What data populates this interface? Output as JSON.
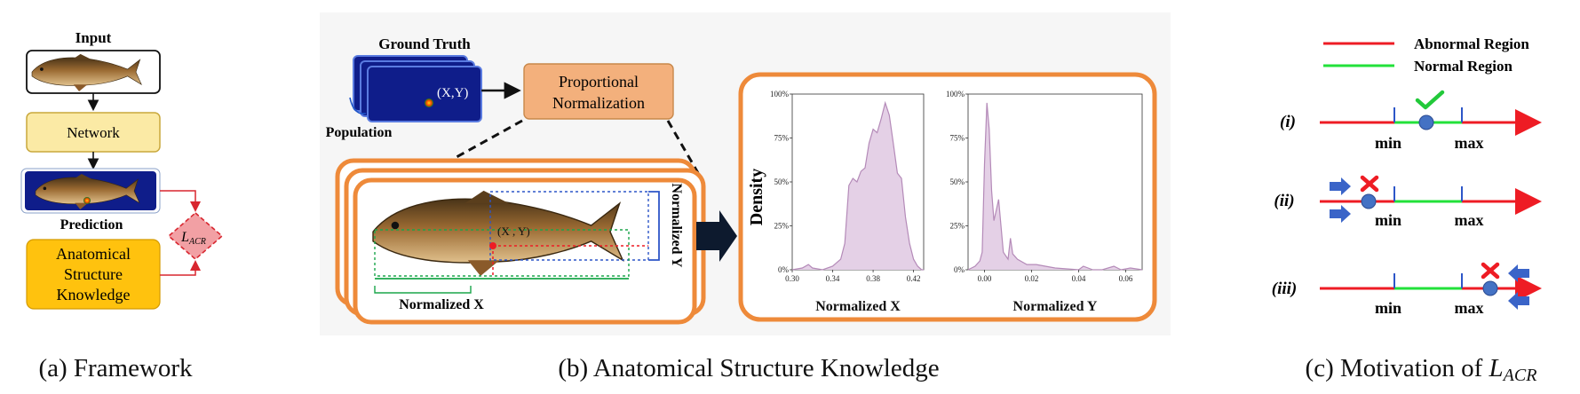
{
  "panel_a": {
    "input_label": "Input",
    "network_label": "Network",
    "prediction_label": "Prediction",
    "knowledge_label": [
      "Anatomical",
      "Structure",
      "Knowledge"
    ],
    "loss_label": "L",
    "loss_subscript": "ACR",
    "caption": "(a) Framework"
  },
  "panel_b": {
    "ground_truth_label": "Ground Truth",
    "population_label": "Population",
    "gt_point_label": "(X,Y)",
    "proportional_label": [
      "Proportional",
      "Normalization"
    ],
    "fish_point_label": "(X , Y)",
    "normalized_x_label": "Normalized X",
    "normalized_y_label": "Normalized Y",
    "density_label": "Density",
    "caption": "(b) Anatomical Structure Knowledge",
    "colors": {
      "orange": "#ee8a3a",
      "navy": "#12237a",
      "fill_purple": "#e4d0e6"
    }
  },
  "chart_data": [
    {
      "type": "area",
      "xlabel": "Normalized X",
      "ylabel": "Density",
      "x_ticks": [
        "0.30",
        "0.34",
        "0.38",
        "0.42"
      ],
      "y_ticks": [
        "0%",
        "25%",
        "50%",
        "75%",
        "100%"
      ],
      "xlim": [
        0.3,
        0.43
      ],
      "ylim": [
        0,
        100
      ],
      "x": [
        0.3,
        0.31,
        0.316,
        0.32,
        0.33,
        0.34,
        0.348,
        0.352,
        0.356,
        0.36,
        0.364,
        0.368,
        0.372,
        0.376,
        0.38,
        0.384,
        0.388,
        0.392,
        0.396,
        0.4,
        0.404,
        0.408,
        0.412,
        0.416,
        0.42,
        0.424,
        0.428,
        0.43
      ],
      "y": [
        0,
        1,
        3,
        1,
        0,
        2,
        6,
        15,
        48,
        52,
        50,
        56,
        58,
        72,
        80,
        78,
        86,
        95,
        88,
        72,
        55,
        52,
        30,
        15,
        6,
        2,
        0,
        0
      ]
    },
    {
      "type": "area",
      "xlabel": "Normalized Y",
      "x_ticks": [
        "0.00",
        "0.02",
        "0.04",
        "0.06"
      ],
      "y_ticks": [
        "0%",
        "25%",
        "50%",
        "75%",
        "100%"
      ],
      "xlim": [
        -0.007,
        0.067
      ],
      "ylim": [
        0,
        100
      ],
      "x": [
        -0.007,
        -0.004,
        -0.002,
        -0.001,
        0.0,
        0.001,
        0.002,
        0.003,
        0.004,
        0.005,
        0.006,
        0.008,
        0.01,
        0.011,
        0.012,
        0.014,
        0.018,
        0.022,
        0.03,
        0.04,
        0.042,
        0.046,
        0.05,
        0.055,
        0.058,
        0.062,
        0.067
      ],
      "y": [
        0,
        2,
        5,
        10,
        60,
        95,
        80,
        45,
        28,
        34,
        40,
        10,
        6,
        18,
        9,
        6,
        3,
        3,
        1,
        0,
        2,
        0,
        0,
        2,
        0,
        1,
        0
      ]
    }
  ],
  "panel_c": {
    "legend_abnormal": "Abnormal Region",
    "legend_normal": "Normal Region",
    "rows": [
      "(i)",
      "(ii)",
      "(iii)"
    ],
    "min_label": "min",
    "max_label": "max",
    "caption_prefix": "(c) Motivation of ",
    "caption_symbol": "L",
    "caption_subscript": "ACR",
    "colors": {
      "abnormal": "#ee1c24",
      "normal": "#22e13a",
      "marker": "#4472c4",
      "arrow": "#3a64c8"
    }
  }
}
